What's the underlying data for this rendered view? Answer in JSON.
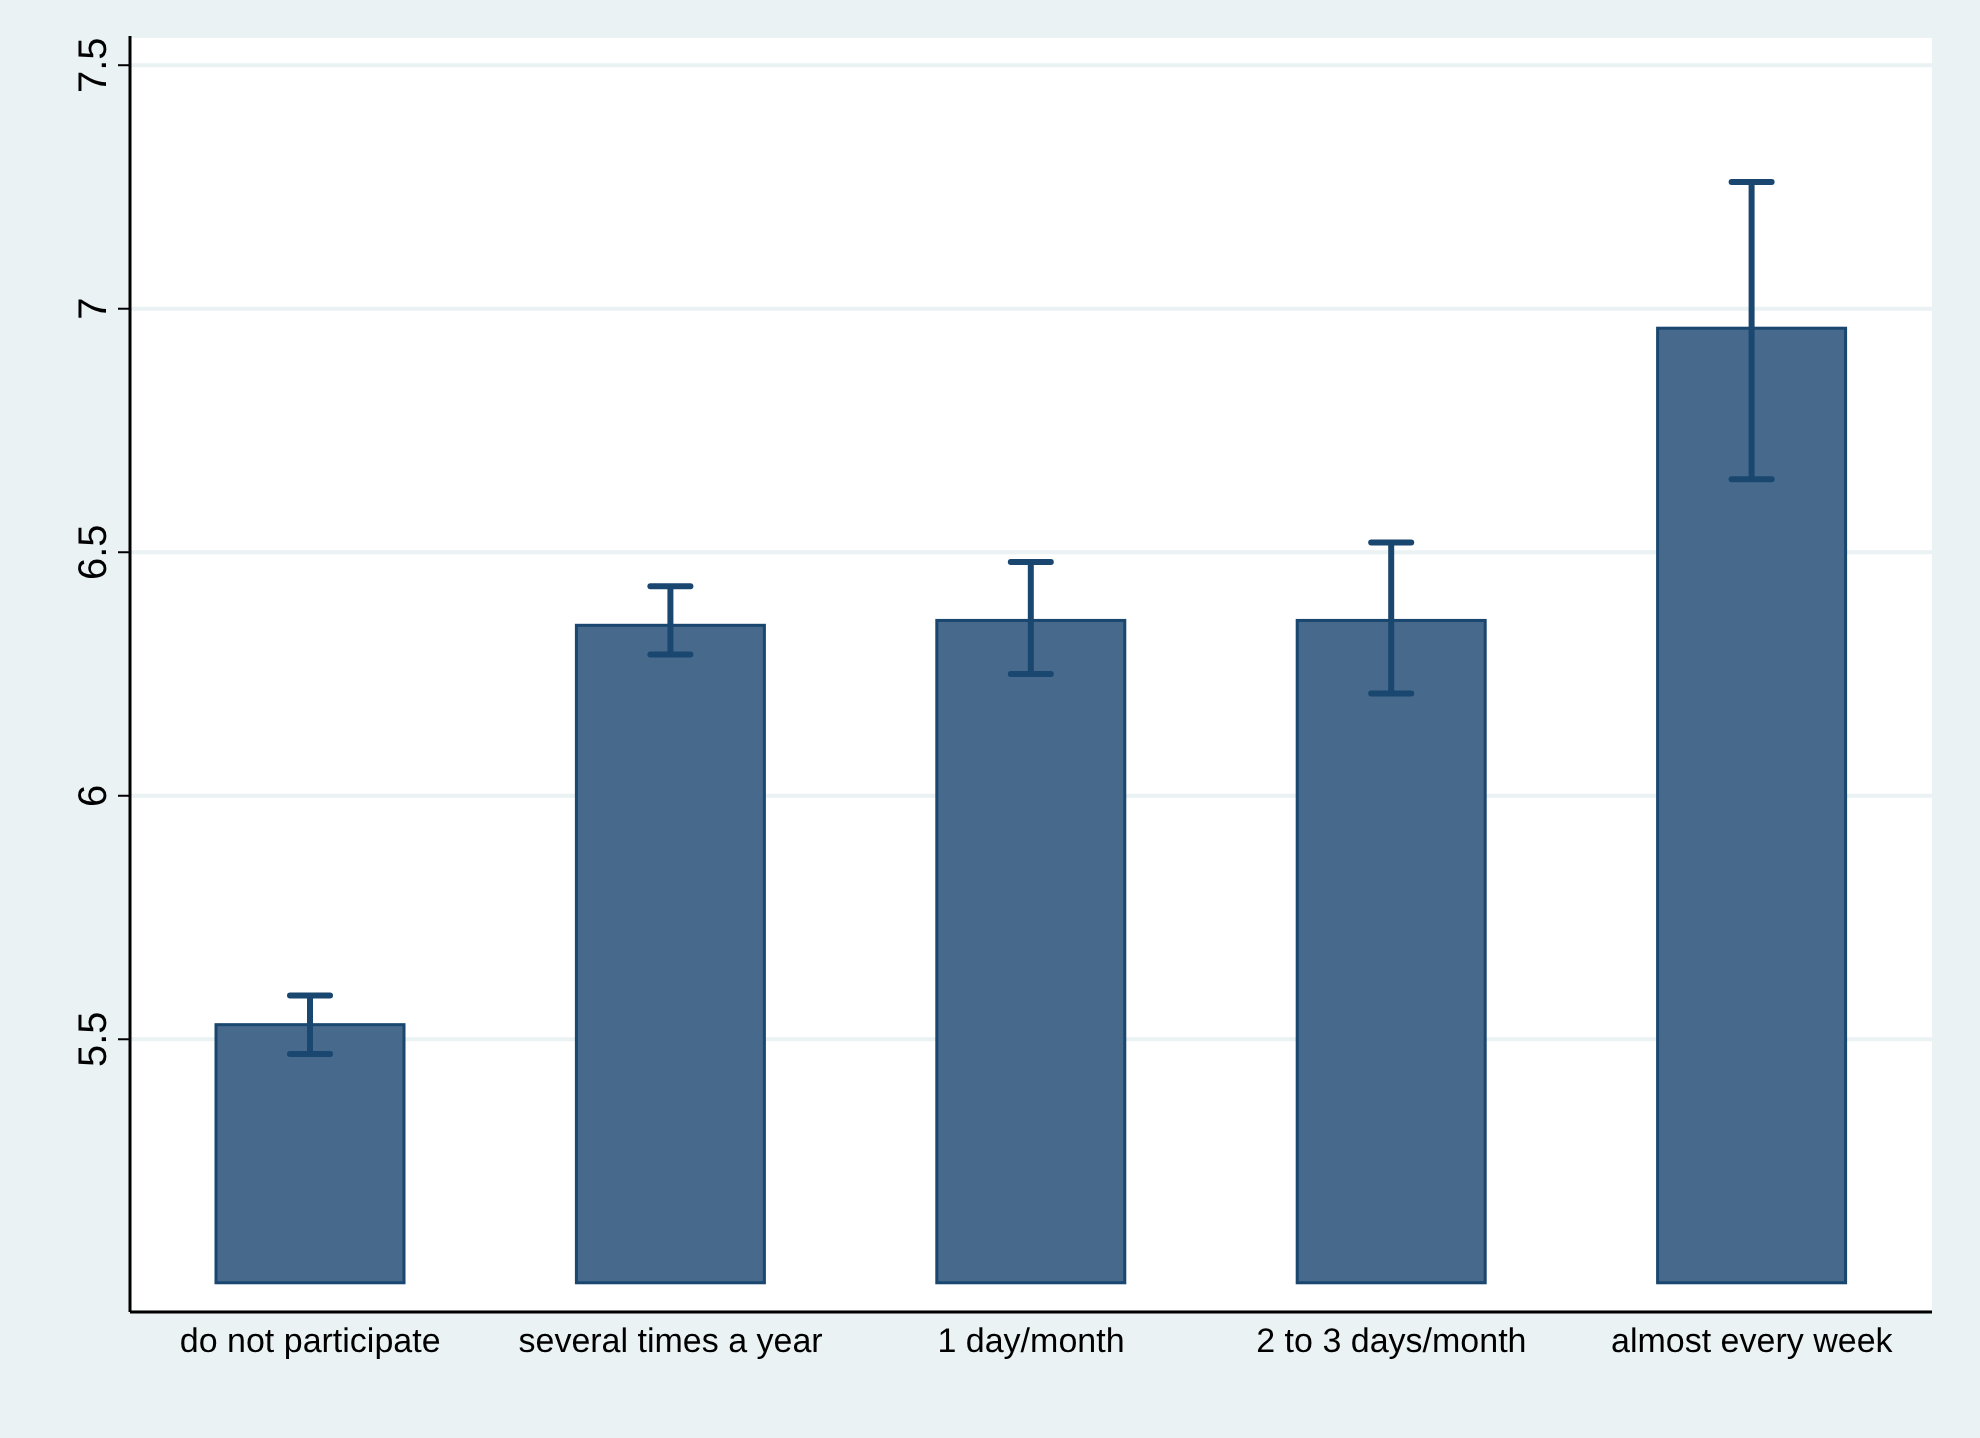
{
  "chart_data": {
    "type": "bar",
    "categories": [
      "do not participate",
      "several times a year",
      "1 day/month",
      "2 to 3 days/month",
      "almost every week"
    ],
    "base": [
      5,
      5,
      5,
      5,
      5
    ],
    "values": [
      0.53,
      1.35,
      1.36,
      1.36,
      1.96
    ],
    "errors": [
      [
        5.47,
        5.59
      ],
      [
        6.29,
        6.43
      ],
      [
        6.25,
        6.48
      ],
      [
        6.21,
        6.52
      ],
      [
        6.65,
        7.26
      ]
    ],
    "color": "#476a8c",
    "ylim": [
      4.94,
      7.56
    ],
    "yticks": [
      5.5,
      6,
      6.5,
      7,
      7.5
    ],
    "grid": "y"
  }
}
